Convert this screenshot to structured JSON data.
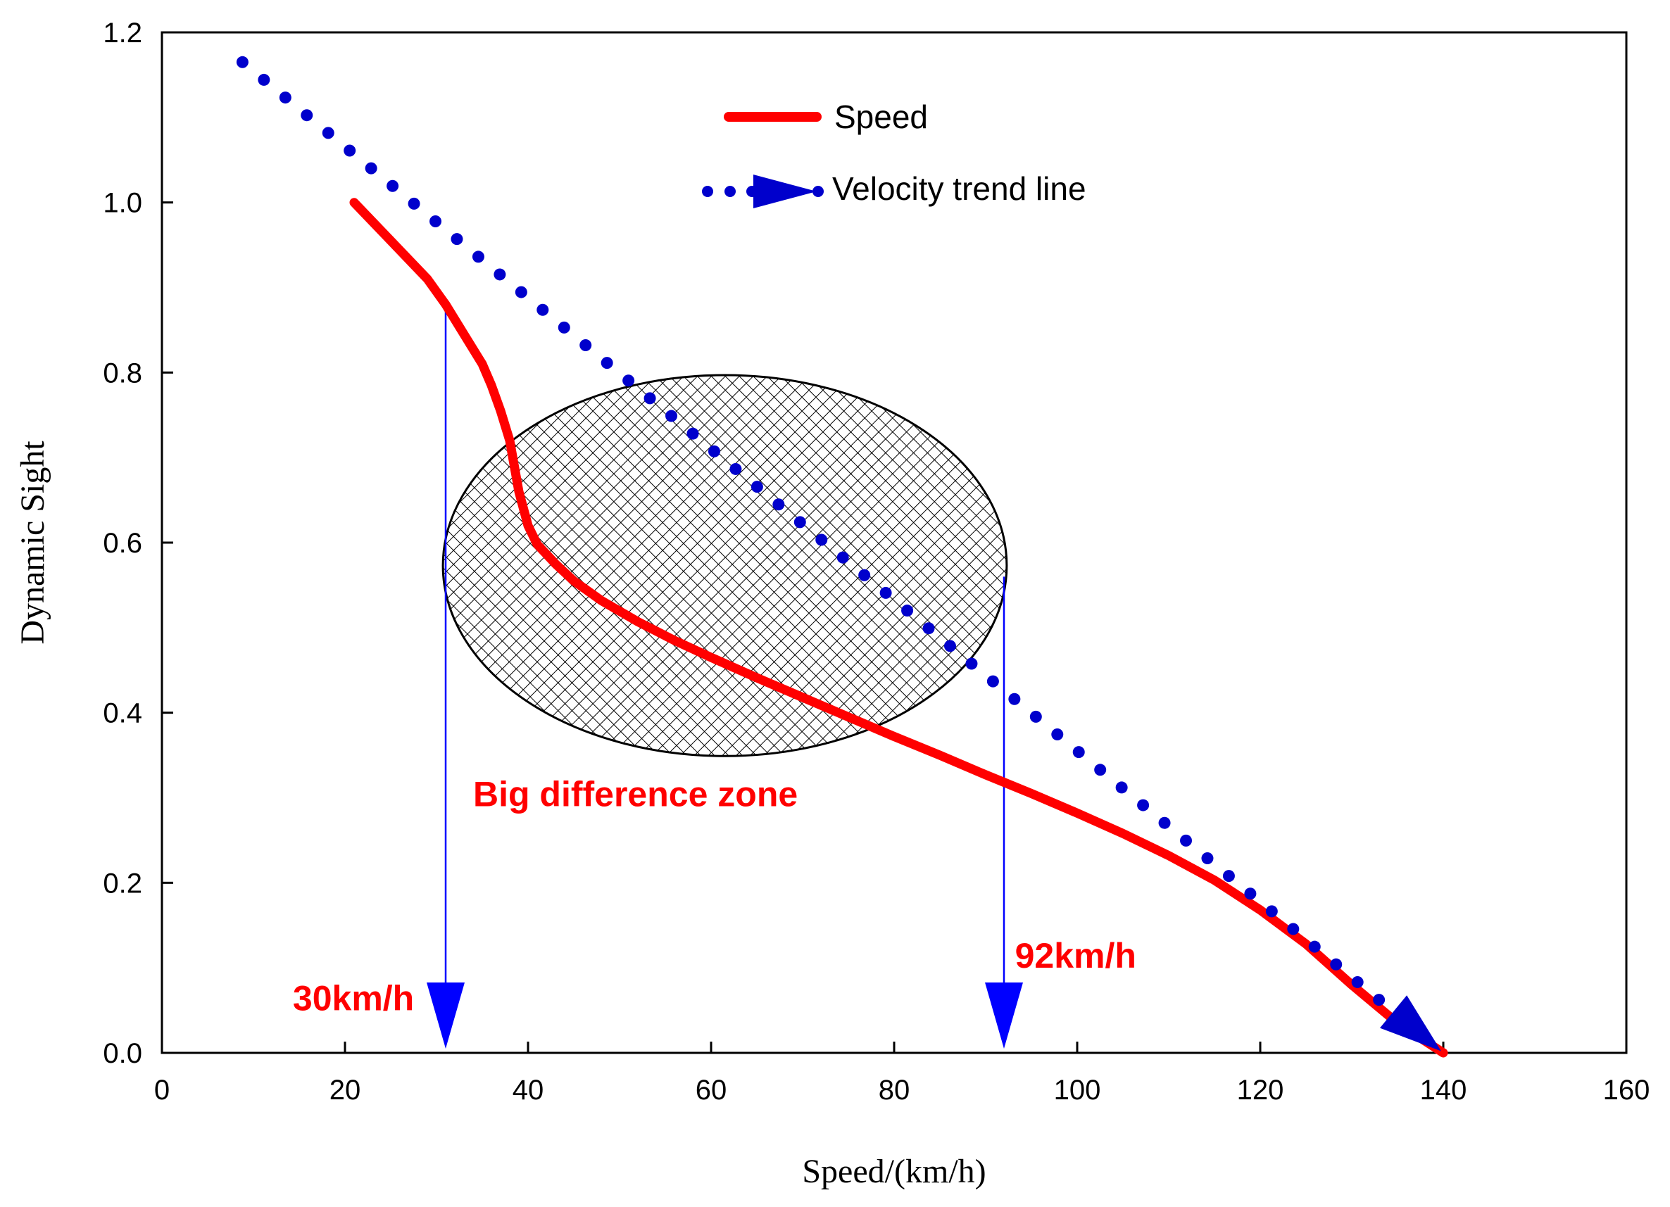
{
  "chart_data": {
    "type": "line",
    "xlabel": "Speed/(km/h)",
    "ylabel": "Dynamic Sight",
    "xlim": [
      0,
      160
    ],
    "ylim": [
      0.0,
      1.2
    ],
    "x_ticks": [
      0,
      20,
      40,
      60,
      80,
      100,
      120,
      140,
      160
    ],
    "y_ticks": [
      "0.0",
      "0.2",
      "0.4",
      "0.6",
      "0.8",
      "1.0",
      "1.2"
    ],
    "grid": false,
    "legend_placement": "top-center",
    "series": [
      {
        "name": "Speed",
        "style": "solid",
        "color": "#ff0000",
        "x": [
          21,
          25,
          29,
          31,
          33,
          35,
          36,
          37,
          38,
          38.5,
          39,
          39.5,
          40,
          41,
          43,
          45,
          48,
          52,
          56,
          60,
          65,
          70,
          75,
          80,
          85,
          90,
          95,
          100,
          105,
          110,
          115,
          120,
          125,
          130,
          135,
          140
        ],
        "y": [
          1.0,
          0.955,
          0.91,
          0.88,
          0.845,
          0.81,
          0.785,
          0.755,
          0.72,
          0.69,
          0.66,
          0.64,
          0.62,
          0.598,
          0.575,
          0.555,
          0.532,
          0.507,
          0.485,
          0.465,
          0.441,
          0.418,
          0.395,
          0.372,
          0.35,
          0.327,
          0.305,
          0.282,
          0.258,
          0.232,
          0.203,
          0.168,
          0.128,
          0.08,
          0.035,
          0.0
        ]
      },
      {
        "name": "Velocity trend line",
        "style": "dotted",
        "color": "#0000cc",
        "x_start": 8.8,
        "x_end": 140,
        "y_start": 1.165,
        "y_end": 0.0,
        "arrow_at_end": true
      }
    ],
    "annotations": [
      {
        "text": "Big difference zone",
        "color": "#ff0000",
        "x": 34,
        "y": 0.305
      },
      {
        "text": "30km/h",
        "color": "#ff0000",
        "x": 14.3,
        "y": 0.065,
        "arrow_x": 31
      },
      {
        "text": "92km/h",
        "color": "#ff0000",
        "x": 93.2,
        "y": 0.115,
        "arrow_x": 92
      }
    ],
    "highlight_zone": {
      "shape": "ellipse",
      "fill": "crosshatch",
      "center_x": 61.5,
      "center_y": 0.573,
      "radius_x": 30.8,
      "radius_y": 0.224
    },
    "vertical_markers": [
      {
        "x": 31,
        "y_top": 0.885
      },
      {
        "x": 92,
        "y_top": 0.56
      }
    ]
  }
}
